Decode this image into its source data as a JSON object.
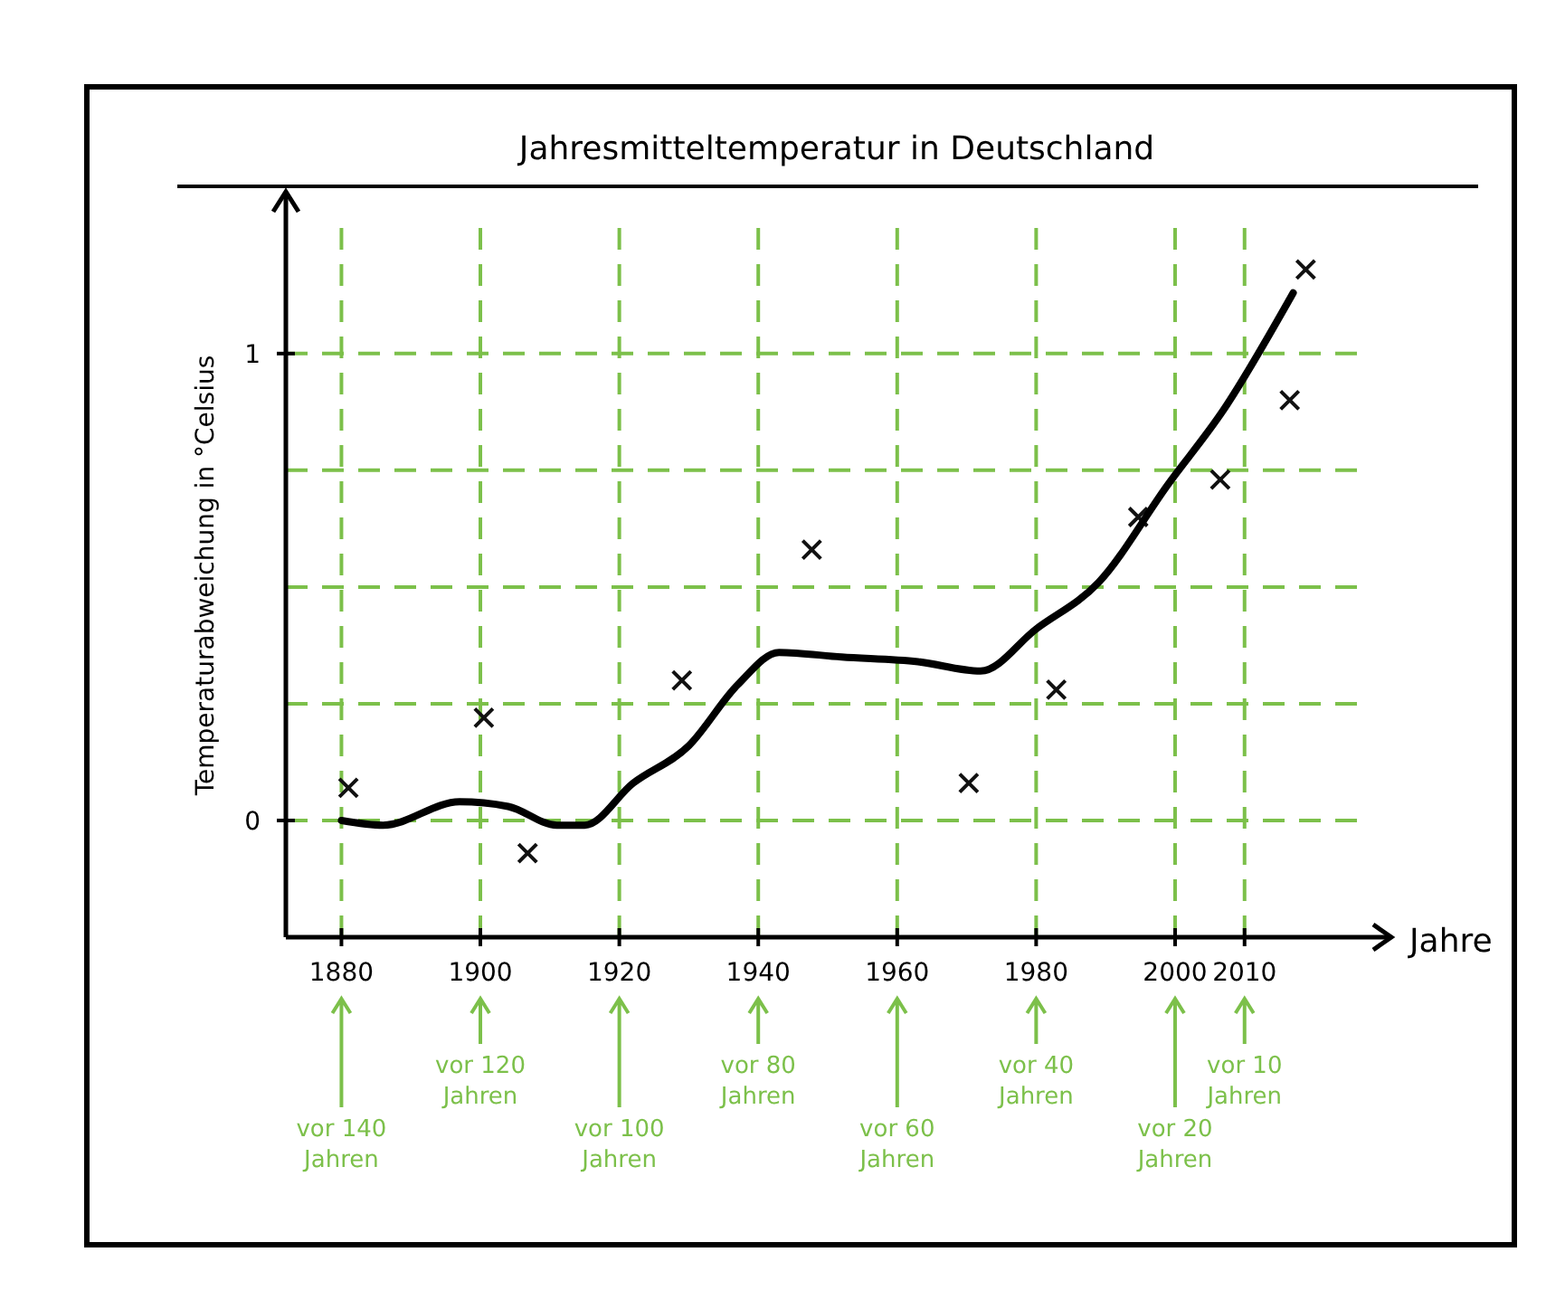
{
  "chart_data": {
    "type": "scatter",
    "title": "Jahresmitteltemperatur in Deutschland",
    "xlabel": "Jahre",
    "ylabel": "Temperaturabweichung in °Celsius",
    "xlim": [
      1872,
      2028
    ],
    "xticks": [
      1880,
      1900,
      1920,
      1940,
      1960,
      1980,
      2000,
      2010
    ],
    "ylim": [
      -0.25,
      1.3
    ],
    "yticks": [
      0,
      {
        "value": 0.25,
        "label": null
      },
      {
        "value": 0.5,
        "label": null
      },
      {
        "value": 0.75,
        "label": null
      },
      1
    ],
    "grid": true,
    "marker": "cross",
    "series": [
      {
        "color": "#111111",
        "x": [
          1881,
          1900.5,
          1906.8,
          1929,
          1947.7,
          1970.3,
          1982.9,
          1994.7,
          2006.5,
          2016.5,
          2018.8
        ],
        "values": [
          0.07,
          0.22,
          -0.07,
          0.3,
          0.58,
          0.08,
          0.28,
          0.65,
          0.73,
          0.9,
          1.18
        ]
      },
      {
        "type": "line",
        "color": "#000000",
        "line_style": "solid",
        "marker": "none",
        "x": [
          1880,
          1886,
          1897,
          1904,
          1911,
          1915,
          1922,
          1930,
          1937,
          1943,
          1952,
          1963,
          1972,
          1980,
          1989,
          1999,
          2007,
          2017
        ],
        "values": [
          0,
          -0.01,
          0.04,
          0.03,
          -0.01,
          -0.01,
          0.08,
          0.16,
          0.29,
          0.36,
          0.35,
          0.34,
          0.32,
          0.41,
          0.51,
          0.72,
          0.88,
          1.13
        ]
      }
    ],
    "annotations": [
      "vor 140 Jahren",
      "vor 120 Jahren",
      "vor 100 Jahren",
      "vor 80 Jahren",
      "vor 60 Jahren",
      "vor 40 Jahren",
      "vor 20 Jahren",
      "vor 10 Jahren"
    ]
  }
}
